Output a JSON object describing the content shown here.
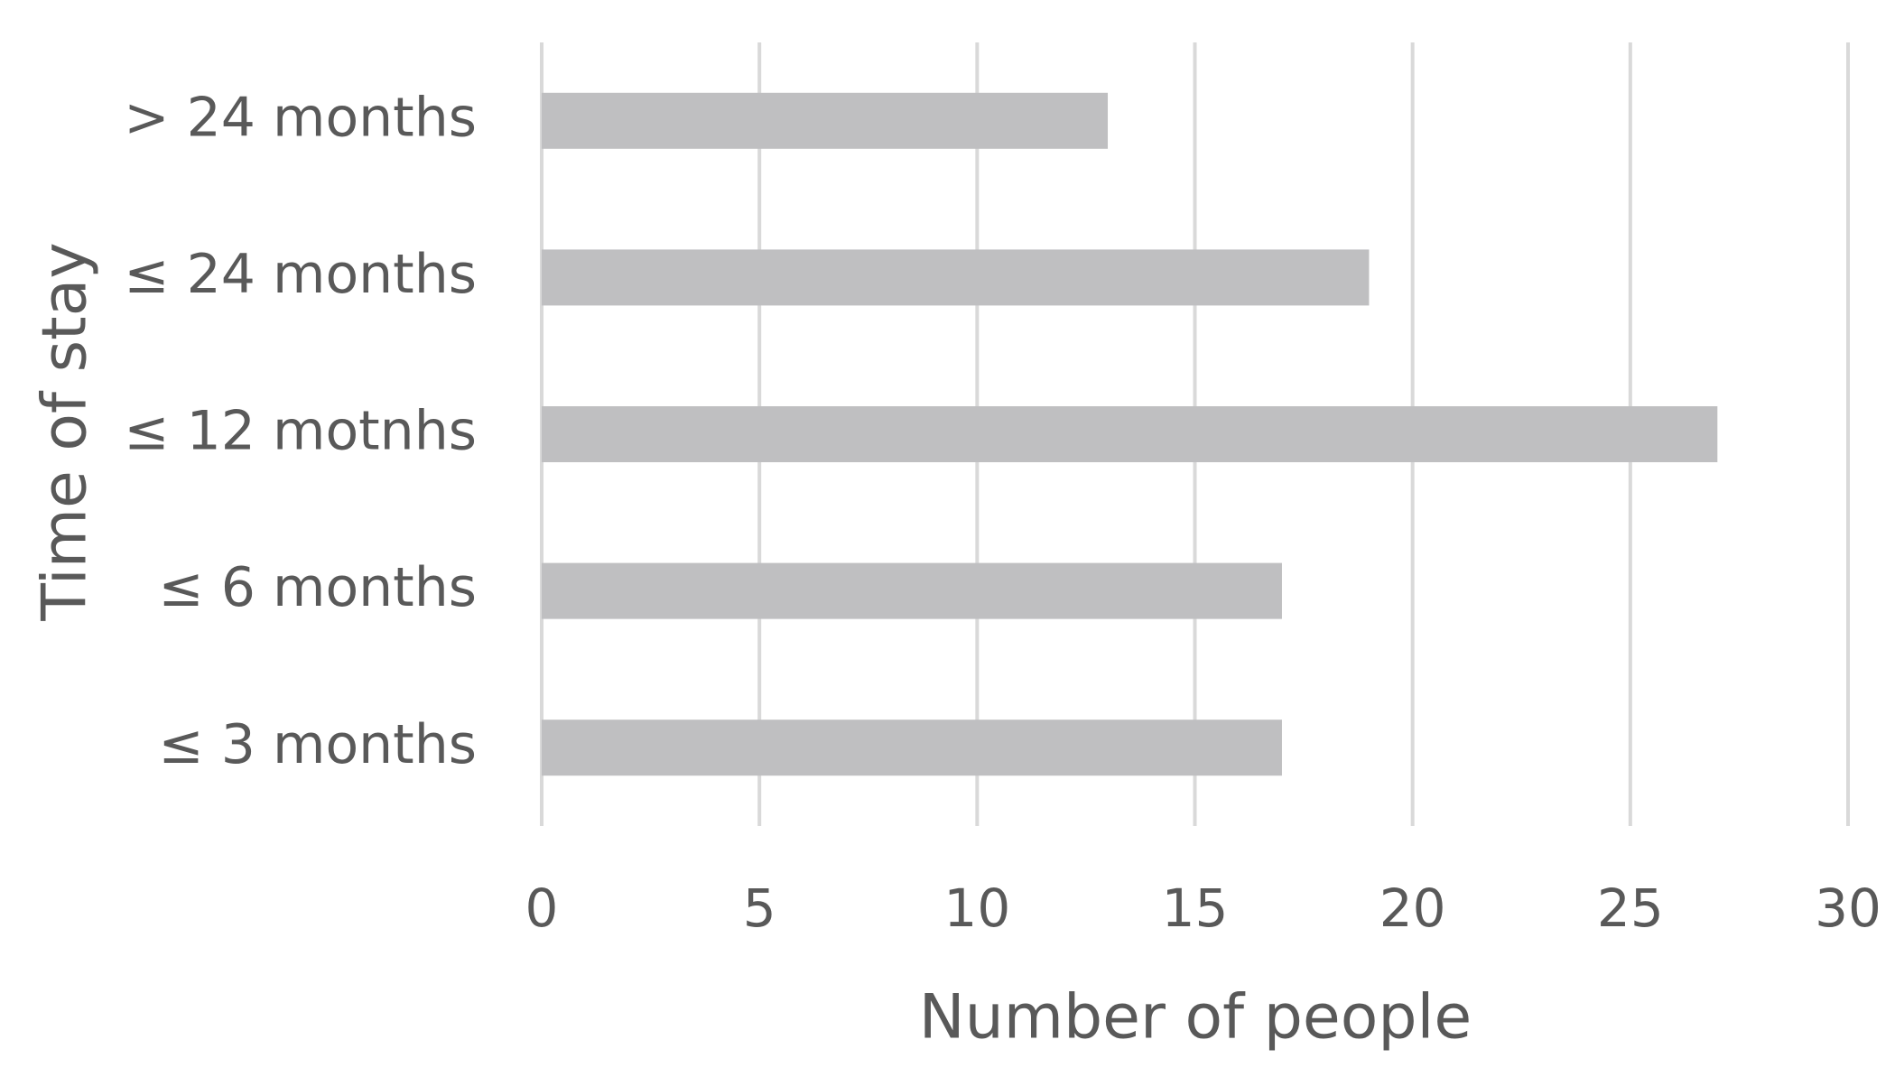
{
  "chart_data": {
    "type": "bar",
    "orientation": "horizontal",
    "x_label": "Number of people",
    "y_label": "Time of stay",
    "categories": [
      "> 24 months",
      "≤ 24 months",
      "≤ 12 motnhs",
      "≤ 6 months",
      "≤ 3 months"
    ],
    "values": [
      13,
      19,
      27,
      17,
      17
    ],
    "color": "#bfbfc1",
    "xlim": [
      0,
      30
    ],
    "xticks": [
      0,
      5,
      10,
      15,
      20,
      25,
      30
    ],
    "grid": true
  }
}
